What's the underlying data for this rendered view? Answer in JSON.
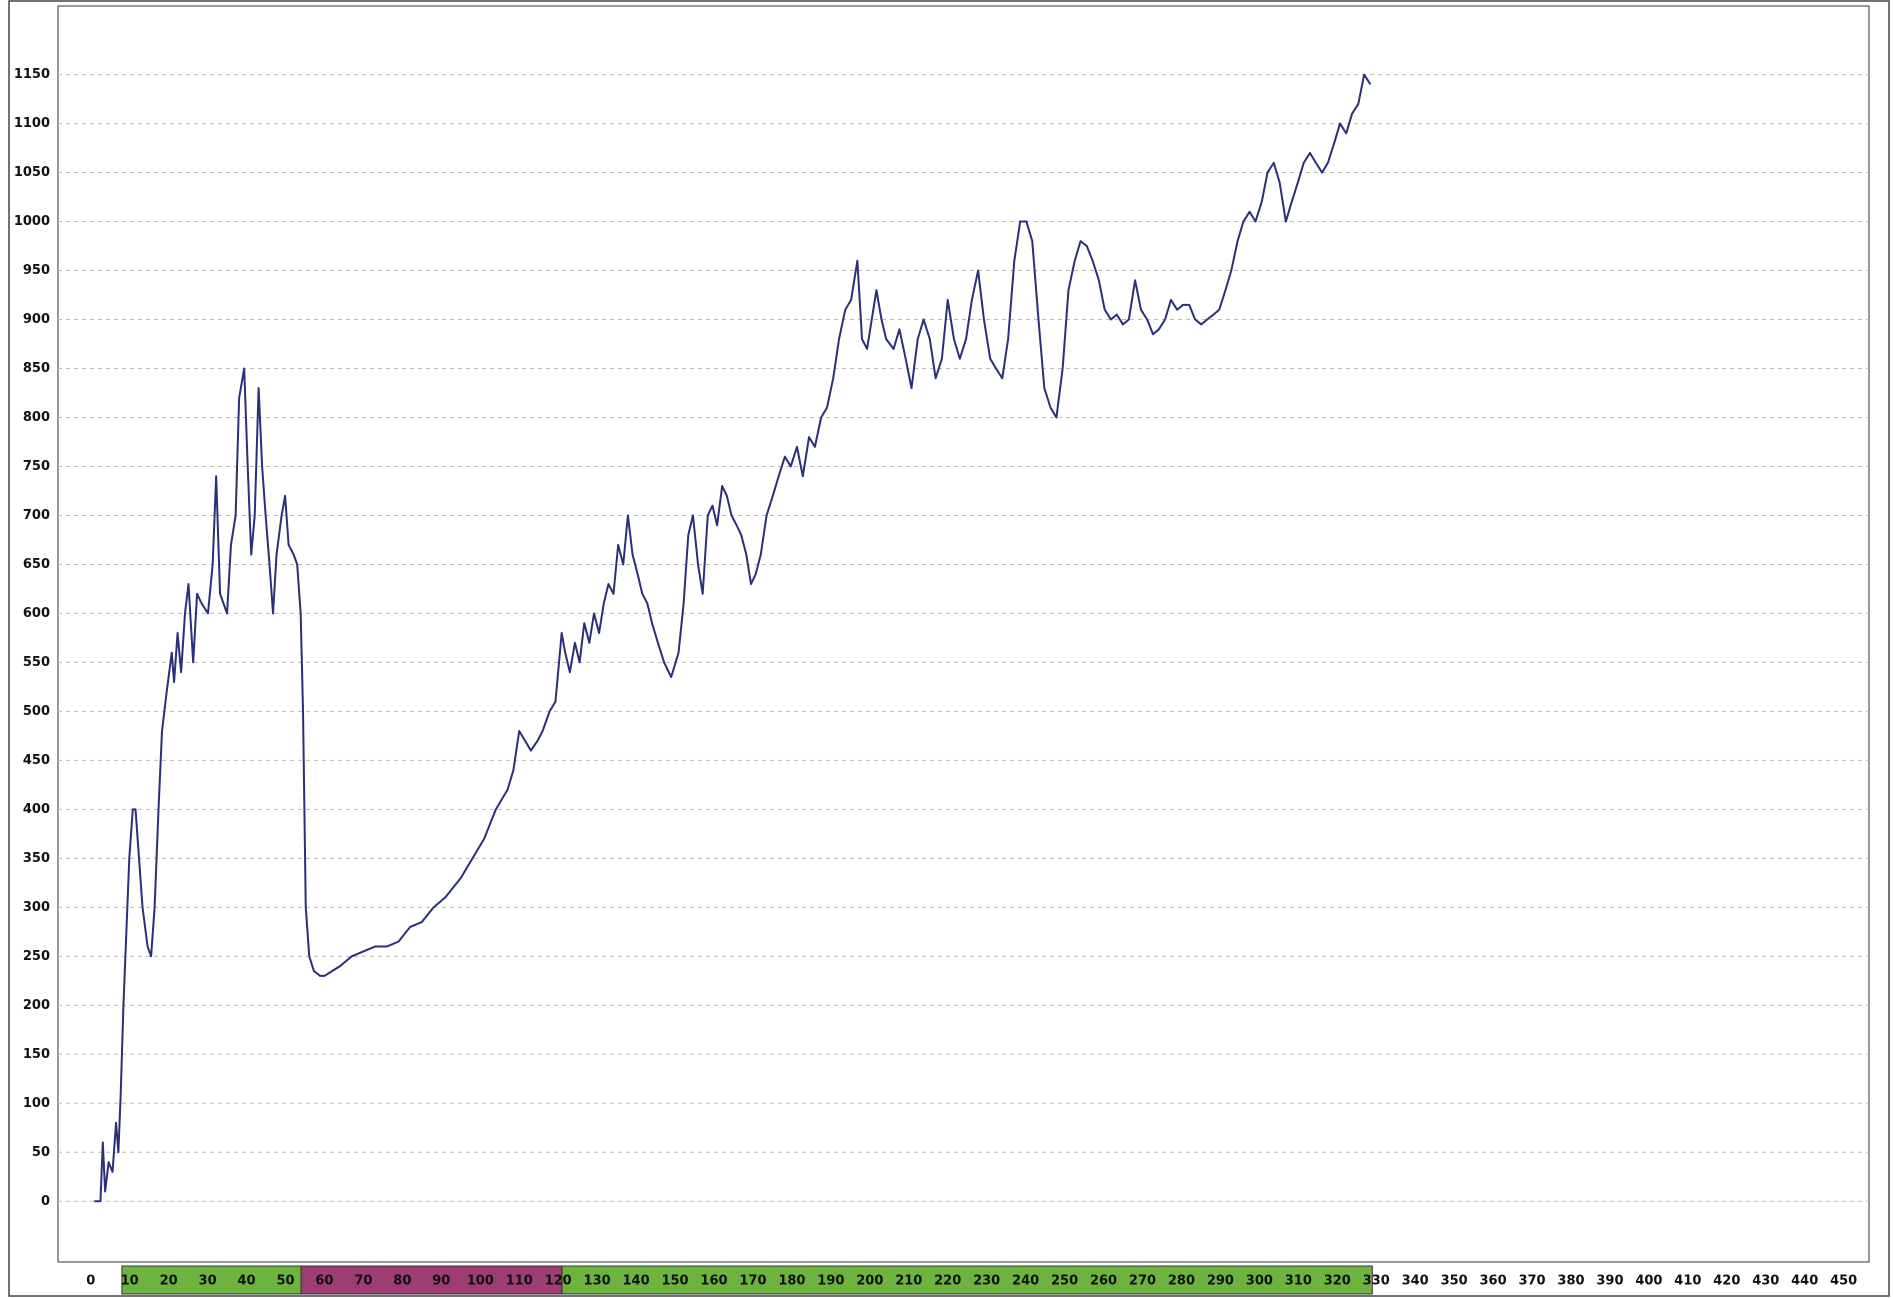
{
  "chart_data": {
    "type": "line",
    "x": [
      0.9,
      2.5,
      3.1,
      3.7,
      4.6,
      5.6,
      6.5,
      7.1,
      7.7,
      8.4,
      9.0,
      9.9,
      10.8,
      11.5,
      12.4,
      13.3,
      14.6,
      15.5,
      16.4,
      17.4,
      18.3,
      19.5,
      20.8,
      21.4,
      22.3,
      23.2,
      24.2,
      25.1,
      26.3,
      27.3,
      28.5,
      30.1,
      31.3,
      32.2,
      33.2,
      34.1,
      35.0,
      36.0,
      37.2,
      38.1,
      39.4,
      40.3,
      41.2,
      42.1,
      43.1,
      44.0,
      44.9,
      45.9,
      46.8,
      47.7,
      49.0,
      49.9,
      50.8,
      52.1,
      53.0,
      53.9,
      54.5,
      55.2,
      56.1,
      57.3,
      58.9,
      60,
      62,
      64,
      67,
      70,
      73,
      76,
      79,
      82,
      85,
      88,
      91,
      95,
      98,
      101,
      104,
      107,
      108.5,
      110,
      111.5,
      113,
      114.7,
      116,
      117.8,
      119.3,
      120.9,
      121.8,
      123,
      124.3,
      125.5,
      126.7,
      128,
      129.2,
      130.5,
      131.7,
      132.9,
      134.2,
      135.4,
      136.7,
      137.9,
      139.1,
      140.4,
      141.6,
      142.9,
      144.1,
      145.6,
      147.2,
      149,
      150.9,
      152.2,
      153.4,
      154.6,
      155.9,
      157.1,
      158.4,
      159.6,
      160.8,
      162.1,
      163.3,
      164.5,
      165.8,
      167,
      168.3,
      169.5,
      170.7,
      172,
      173.5,
      175.1,
      176.6,
      178.2,
      179.7,
      181.3,
      182.8,
      184.4,
      185.9,
      187.5,
      189,
      190.6,
      192.1,
      193.7,
      195.2,
      196.8,
      198,
      199.3,
      200.5,
      201.7,
      203,
      204.2,
      206.1,
      207.6,
      209.2,
      210.7,
      212.3,
      213.8,
      215.4,
      216.9,
      218.5,
      220,
      221.6,
      223.1,
      224.7,
      226.2,
      227.8,
      229.3,
      230.9,
      232.4,
      234,
      235.5,
      237.1,
      238.6,
      240.2,
      241.7,
      243.3,
      244.8,
      246.4,
      247.9,
      249.5,
      251,
      252.6,
      254.1,
      255.7,
      257.2,
      258.8,
      260.3,
      261.9,
      263.4,
      265,
      266.5,
      268.1,
      269.6,
      271.2,
      272.7,
      274.2,
      275.8,
      277.3,
      278.9,
      280.4,
      282,
      283.5,
      285.1,
      286.6,
      288.2,
      289.7,
      291.3,
      292.8,
      294.4,
      295.9,
      297.5,
      299,
      300.6,
      302.1,
      303.7,
      305.2,
      306.8,
      308.3,
      309.9,
      311.4,
      313,
      314.5,
      316.1,
      317.6,
      319.2,
      320.7,
      322.3,
      323.8,
      325.4,
      326.9,
      328.5
    ],
    "series": [
      {
        "color": "#2b2f7a",
        "values": [
          0,
          0,
          60,
          10,
          40,
          30,
          80,
          50,
          110,
          200,
          260,
          350,
          400,
          400,
          350,
          300,
          260,
          250,
          300,
          400,
          480,
          520,
          560,
          530,
          580,
          540,
          600,
          630,
          550,
          620,
          610,
          600,
          650,
          740,
          620,
          610,
          600,
          670,
          700,
          820,
          850,
          750,
          660,
          700,
          830,
          750,
          700,
          650,
          600,
          660,
          700,
          720,
          670,
          660,
          650,
          600,
          500,
          300,
          250,
          235,
          230,
          230,
          235,
          240,
          250,
          255,
          260,
          260,
          265,
          280,
          285,
          300,
          310,
          330,
          350,
          370,
          400,
          420,
          440,
          480,
          470,
          460,
          470,
          480,
          500,
          510,
          580,
          560,
          540,
          570,
          550,
          590,
          570,
          600,
          580,
          610,
          630,
          620,
          670,
          650,
          700,
          660,
          640,
          620,
          610,
          590,
          570,
          550,
          535,
          560,
          610,
          680,
          700,
          650,
          620,
          700,
          710,
          690,
          730,
          720,
          700,
          690,
          680,
          660,
          630,
          640,
          660,
          700,
          720,
          740,
          760,
          750,
          770,
          740,
          780,
          770,
          800,
          810,
          840,
          880,
          910,
          920,
          960,
          880,
          870,
          900,
          930,
          900,
          880,
          870,
          890,
          860,
          830,
          880,
          900,
          880,
          840,
          860,
          920,
          880,
          860,
          880,
          920,
          950,
          900,
          860,
          850,
          840,
          880,
          960,
          1000,
          1000,
          980,
          900,
          830,
          810,
          800,
          850,
          930,
          960,
          980,
          975,
          960,
          940,
          910,
          900,
          905,
          895,
          900,
          940,
          910,
          900,
          885,
          890,
          900,
          920,
          910,
          915,
          915,
          900,
          895,
          900,
          905,
          910,
          930,
          950,
          980,
          1000,
          1010,
          1000,
          1020,
          1050,
          1060,
          1040,
          1000,
          1020,
          1040,
          1060,
          1070,
          1060,
          1050,
          1060,
          1080,
          1100,
          1090,
          1110,
          1120,
          1150,
          1140
        ]
      }
    ],
    "xlim": [
      -8.4,
      456.5
    ],
    "ylim": [
      -62,
      1220
    ],
    "xticks": [
      0,
      10,
      20,
      30,
      40,
      50,
      60,
      70,
      80,
      90,
      100,
      110,
      120,
      130,
      140,
      150,
      160,
      170,
      180,
      190,
      200,
      210,
      220,
      230,
      240,
      250,
      260,
      270,
      280,
      290,
      300,
      310,
      320,
      330,
      340,
      350,
      360,
      370,
      380,
      390,
      400,
      410,
      420,
      430,
      440,
      450
    ],
    "yticks": [
      0,
      50,
      100,
      150,
      200,
      250,
      300,
      350,
      400,
      450,
      500,
      550,
      600,
      650,
      700,
      750,
      800,
      850,
      900,
      950,
      1000,
      1050,
      1100,
      1150
    ],
    "grid": true,
    "bands": [
      {
        "start": 8,
        "end": 54,
        "color": "#6db33f"
      },
      {
        "start": 54,
        "end": 121,
        "color": "#9e3d73"
      },
      {
        "start": 121,
        "end": 329,
        "color": "#6db33f"
      }
    ]
  }
}
